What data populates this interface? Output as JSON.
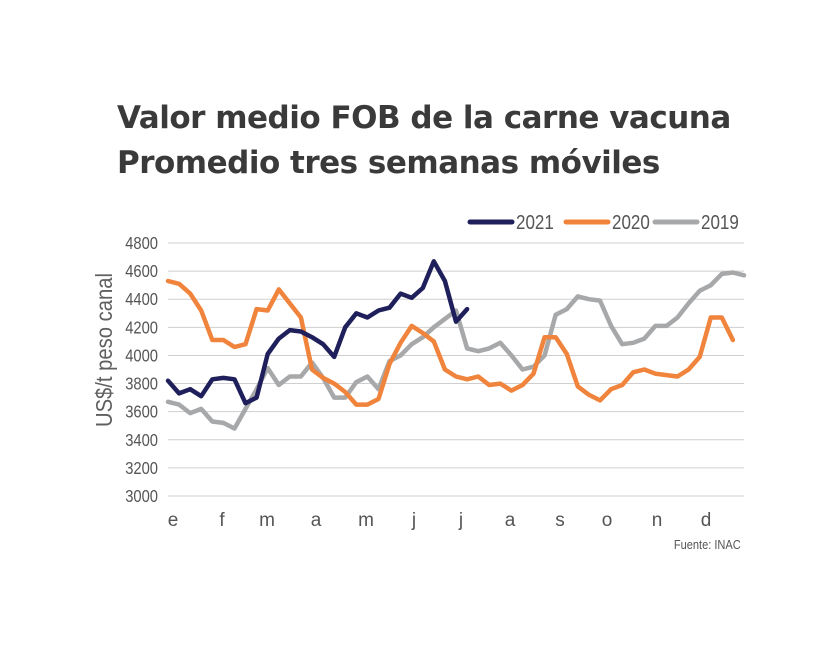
{
  "title_line1": "Valor medio FOB de la carne vacuna",
  "title_line2": "Promedio tres semanas móviles",
  "source": "Fuente: INAC",
  "chart_data": {
    "type": "line",
    "title": "Valor medio FOB de la carne vacuna — Promedio tres semanas móviles",
    "xlabel": "",
    "ylabel": "US$/t peso canal",
    "ylim": [
      3000,
      4800
    ],
    "yticks": [
      "4800",
      "4600",
      "4400",
      "4200",
      "4000",
      "3800",
      "3600",
      "3400",
      "3200",
      "3000"
    ],
    "month_labels": [
      "e",
      "f",
      "m",
      "a",
      "m",
      "j",
      "j",
      "a",
      "s",
      "o",
      "n",
      "d"
    ],
    "legend_position": "top-right",
    "x_unit": "week (1–52)",
    "series": [
      {
        "name": "2021",
        "color": "#1f1f5b",
        "values": [
          3820,
          3730,
          3760,
          3710,
          3830,
          3840,
          3830,
          3660,
          3700,
          4010,
          4120,
          4180,
          4170,
          4130,
          4080,
          3990,
          4200,
          4300,
          4270,
          4320,
          4340,
          4440,
          4410,
          4480,
          4670,
          4530,
          4240,
          4330
        ]
      },
      {
        "name": "2020",
        "color": "#f0843c",
        "values": [
          4530,
          4510,
          4440,
          4320,
          4110,
          4110,
          4060,
          4080,
          4330,
          4320,
          4470,
          4370,
          4270,
          3900,
          3840,
          3800,
          3740,
          3650,
          3650,
          3690,
          3940,
          4090,
          4210,
          4160,
          4100,
          3900,
          3850,
          3830,
          3850,
          3790,
          3800,
          3750,
          3790,
          3870,
          4130,
          4130,
          4010,
          3780,
          3720,
          3680,
          3760,
          3790,
          3880,
          3900,
          3870,
          3860,
          3850,
          3900,
          3990,
          4270,
          4270,
          4110
        ]
      },
      {
        "name": "2019",
        "color": "#a7a8aa",
        "values": [
          3670,
          3650,
          3590,
          3620,
          3530,
          3520,
          3480,
          3620,
          3760,
          3910,
          3790,
          3850,
          3850,
          3950,
          3840,
          3700,
          3700,
          3810,
          3850,
          3760,
          3960,
          4000,
          4080,
          4130,
          4200,
          4260,
          4320,
          4050,
          4030,
          4050,
          4090,
          4000,
          3900,
          3920,
          4000,
          4290,
          4330,
          4420,
          4400,
          4390,
          4210,
          4080,
          4090,
          4120,
          4210,
          4210,
          4270,
          4370,
          4460,
          4500,
          4580,
          4590,
          4570
        ]
      }
    ]
  }
}
